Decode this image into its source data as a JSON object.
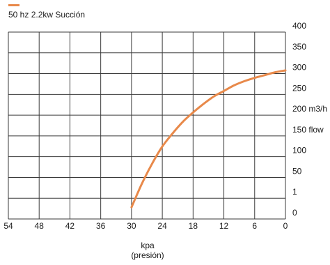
{
  "chart_data": {
    "type": "line",
    "title": "",
    "x_reversed": true,
    "xlim": [
      54,
      0
    ],
    "ylim": [
      0,
      400
    ],
    "x_ticks": [
      "54",
      "48",
      "42",
      "36",
      "30",
      "24",
      "18",
      "12",
      "6",
      "0"
    ],
    "y_ticks": [
      "0",
      "1",
      "50",
      "100",
      "150 flow",
      "200 m3/h",
      "250",
      "300",
      "350",
      "400"
    ],
    "xlabel": "kpa",
    "xlabel_sub": "(presión)",
    "grid": true,
    "legend_position": "top-left",
    "series": [
      {
        "name": "50 hz 2.2kw Succión",
        "color": "#E8894A",
        "x": [
          30,
          28,
          26,
          24,
          22,
          20,
          18,
          16,
          14,
          12,
          10,
          8,
          6,
          4,
          2,
          0
        ],
        "y": [
          25,
          75,
          118,
          155,
          183,
          208,
          228,
          246,
          262,
          274,
          286,
          295,
          302,
          308,
          314,
          318
        ]
      }
    ]
  }
}
